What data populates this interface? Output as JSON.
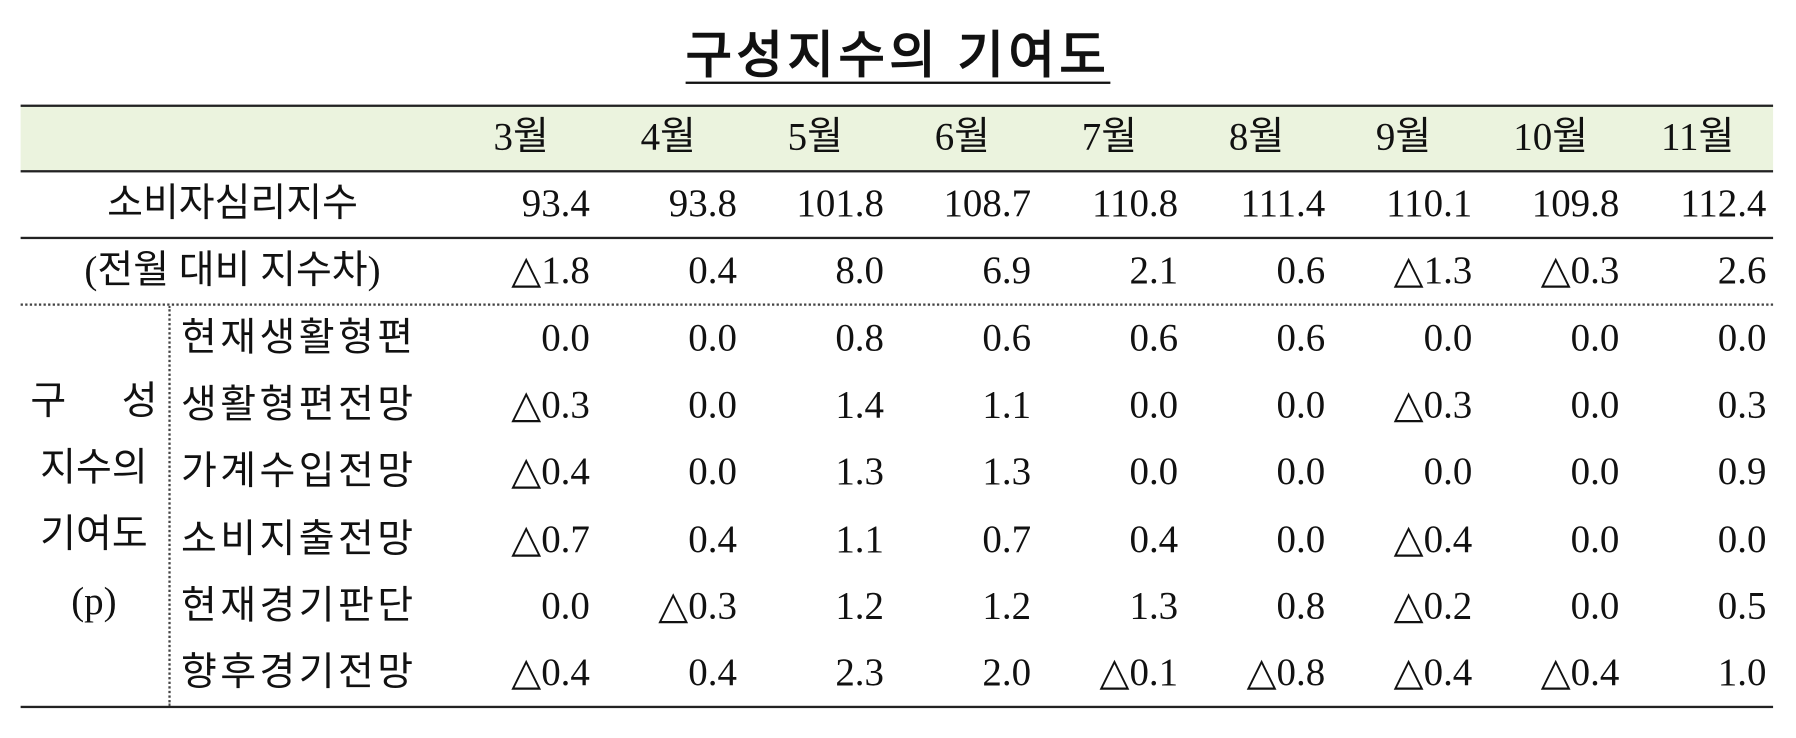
{
  "title": "구성지수의 기여도",
  "table": {
    "columns": [
      "3월",
      "4월",
      "5월",
      "6월",
      "7월",
      "8월",
      "9월",
      "10월",
      "11월"
    ],
    "main_rows": [
      {
        "label": "소비자심리지수",
        "values": [
          "93.4",
          "93.8",
          "101.8",
          "108.7",
          "110.8",
          "111.4",
          "110.1",
          "109.8",
          "112.4"
        ]
      },
      {
        "label": "(전월 대비 지수차)",
        "values": [
          "△1.8",
          "0.4",
          "8.0",
          "6.9",
          "2.1",
          "0.6",
          "△1.3",
          "△0.3",
          "2.6"
        ]
      }
    ],
    "group_label": [
      "구 성",
      "지수의",
      "기여도",
      "(p)"
    ],
    "group_rows": [
      {
        "label": "현재생활형편",
        "values": [
          "0.0",
          "0.0",
          "0.8",
          "0.6",
          "0.6",
          "0.6",
          "0.0",
          "0.0",
          "0.0"
        ]
      },
      {
        "label": "생활형편전망",
        "values": [
          "△0.3",
          "0.0",
          "1.4",
          "1.1",
          "0.0",
          "0.0",
          "△0.3",
          "0.0",
          "0.3"
        ]
      },
      {
        "label": "가계수입전망",
        "values": [
          "△0.4",
          "0.0",
          "1.3",
          "1.3",
          "0.0",
          "0.0",
          "0.0",
          "0.0",
          "0.9"
        ]
      },
      {
        "label": "소비지출전망",
        "values": [
          "△0.7",
          "0.4",
          "1.1",
          "0.7",
          "0.4",
          "0.0",
          "△0.4",
          "0.0",
          "0.0"
        ]
      },
      {
        "label": "현재경기판단",
        "values": [
          "0.0",
          "△0.3",
          "1.2",
          "1.2",
          "1.3",
          "0.8",
          "△0.2",
          "0.0",
          "0.5"
        ]
      },
      {
        "label": "향후경기전망",
        "values": [
          "△0.4",
          "0.4",
          "2.3",
          "2.0",
          "△0.1",
          "△0.8",
          "△0.4",
          "△0.4",
          "1.0"
        ]
      }
    ]
  }
}
